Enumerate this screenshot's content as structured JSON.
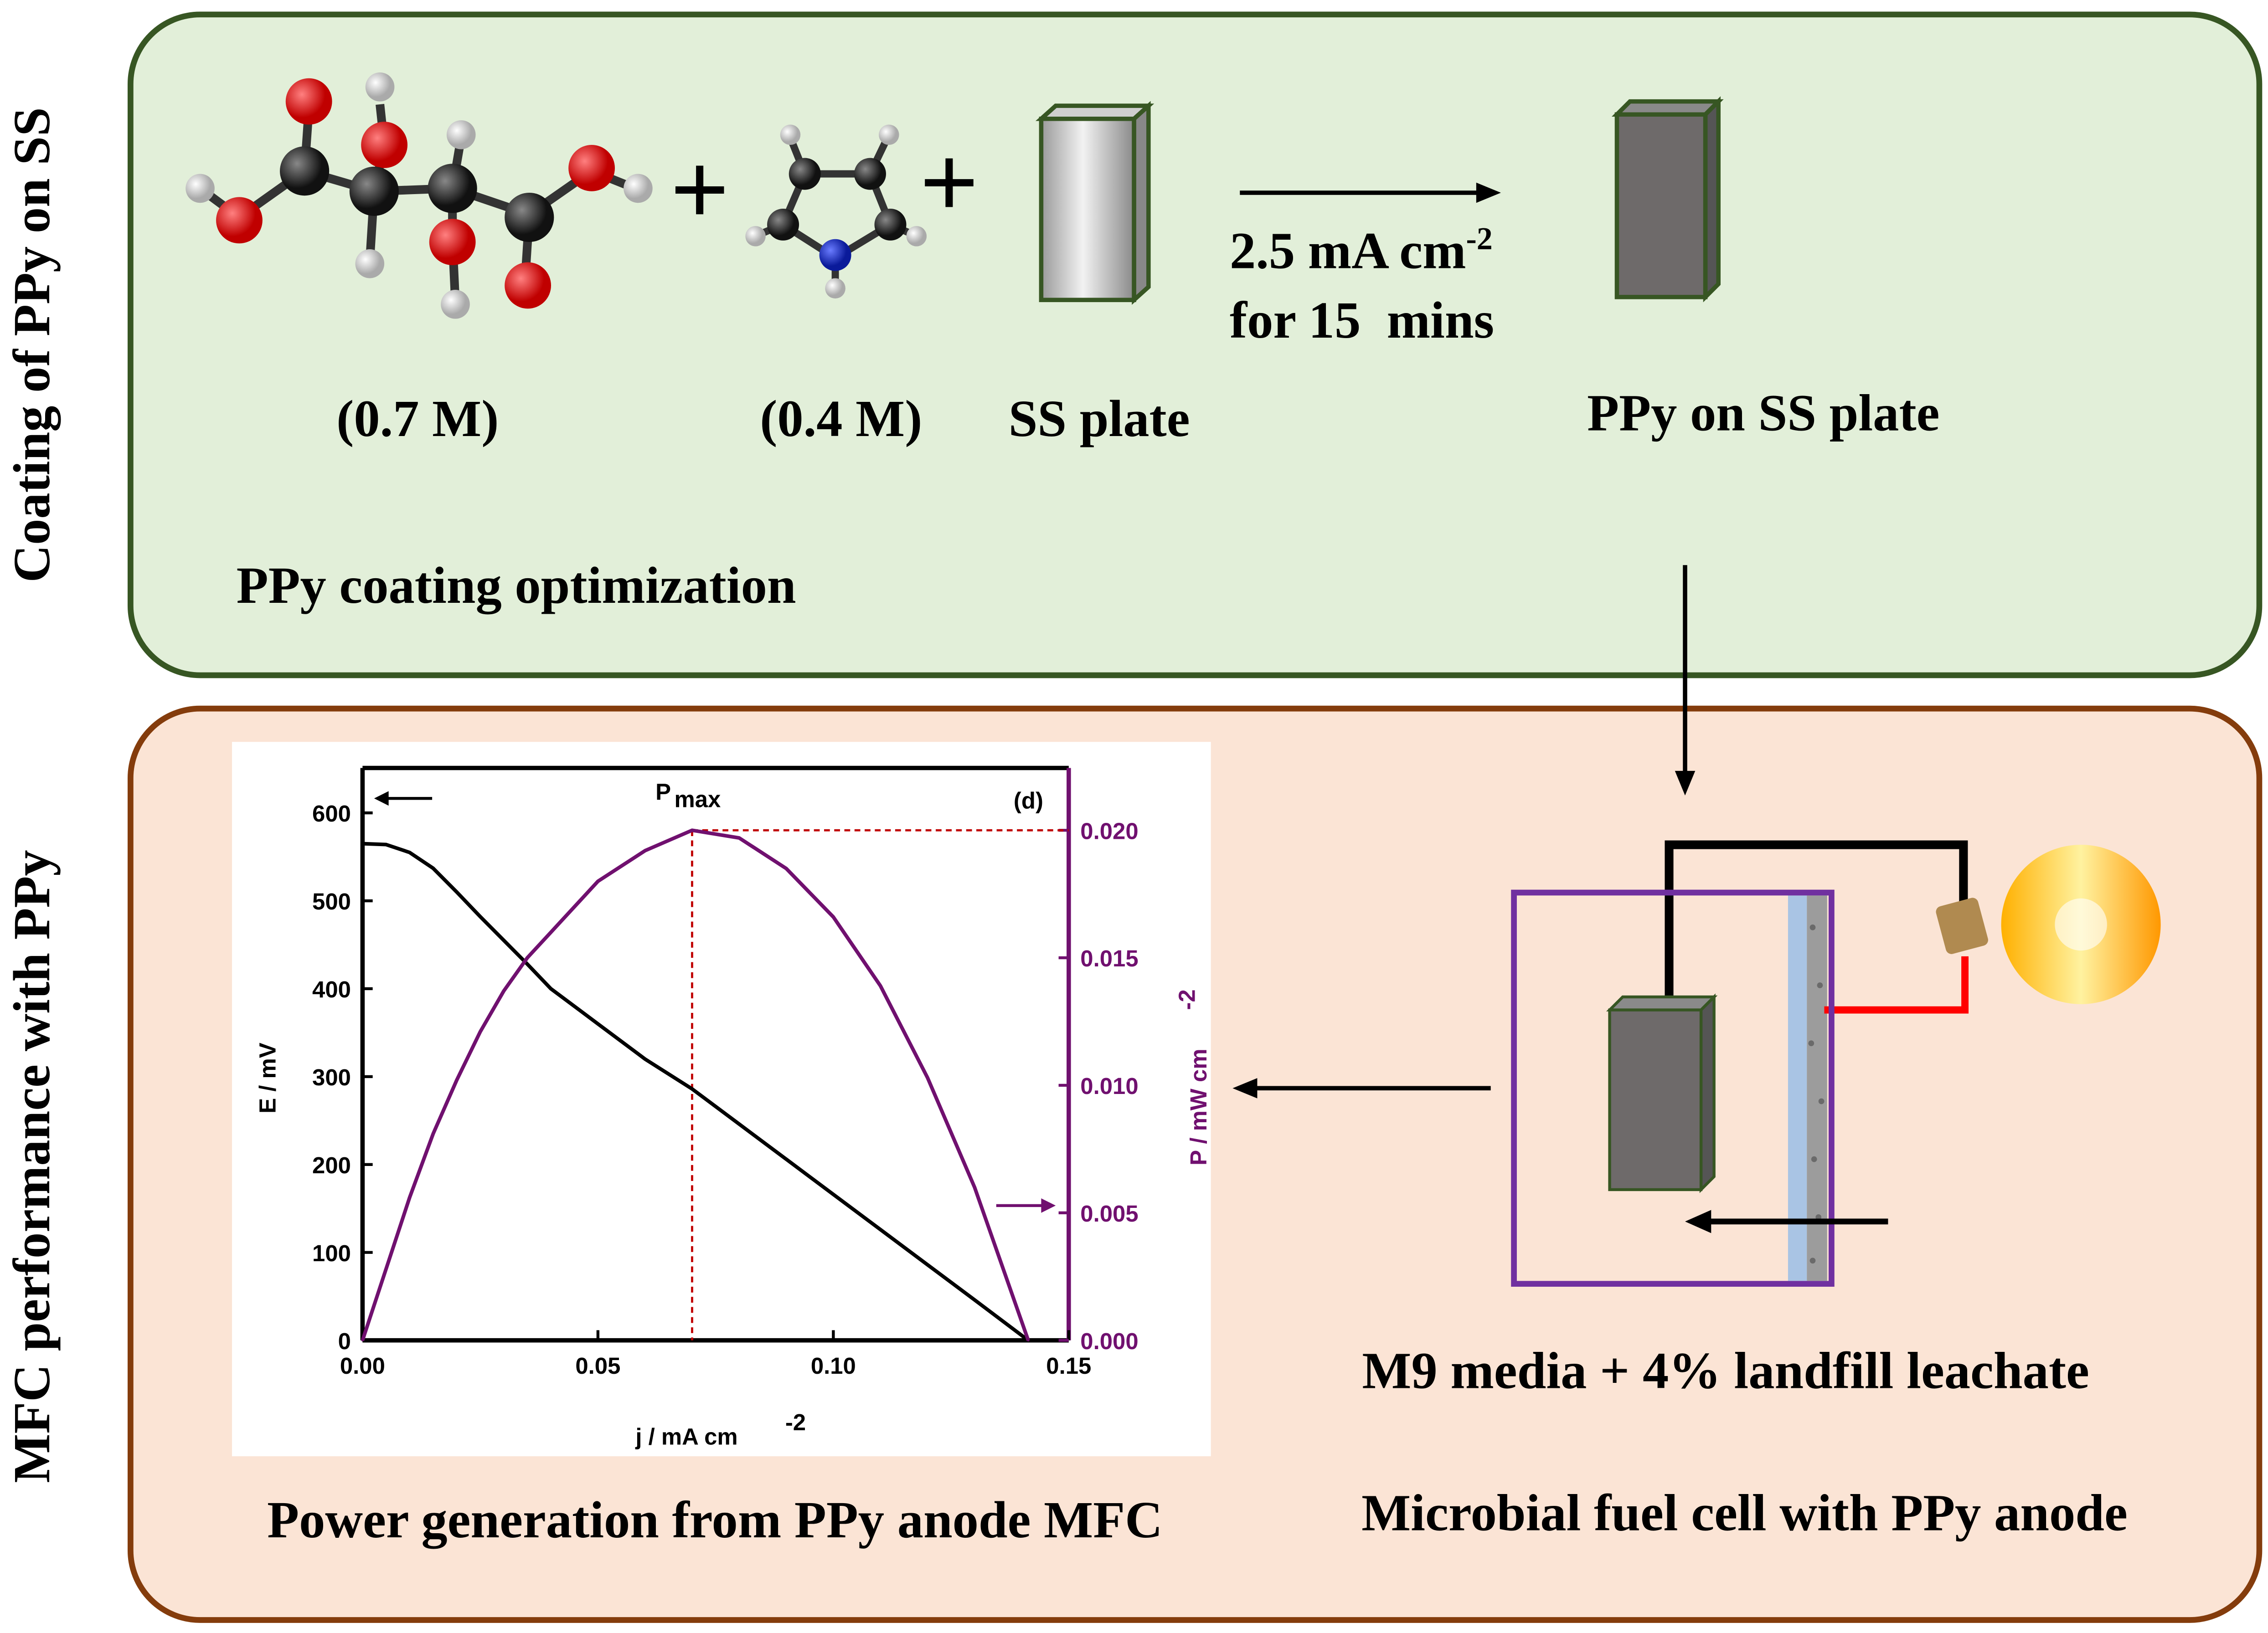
{
  "side_labels": {
    "top": "Coating of PPy on SS",
    "bottom": "MFC performance with PPy"
  },
  "coating": {
    "acid_conc": "(0.7 M)",
    "pyrrole_conc": "(0.4 M)",
    "ss_plate": "SS plate",
    "condition_line1": "2.5 mA cm",
    "condition_sup": "-2",
    "condition_line2": "for 15  mins",
    "product": "PPy on SS plate",
    "caption": "PPy coating optimization",
    "plus": "+"
  },
  "mfc": {
    "media": "M9 media + 4% landfill leachate",
    "caption": "Microbial fuel cell with PPy anode",
    "chart_caption": "Power generation from PPy anode MFC"
  },
  "colors": {
    "top_fill": "#e2efd9",
    "top_border": "#375623",
    "bottom_fill": "#fbe4d5",
    "bottom_border": "#843c0c",
    "power": "#70106f",
    "pmax_line": "#c00000",
    "cell_box": "#7030a0"
  },
  "chart_data": {
    "type": "line",
    "panel_label": "(d)",
    "annotation": "P",
    "annotation_sub": "max",
    "xlabel": "j / mA cm",
    "xlabel_sup": "-2",
    "ylabel": "E / mV",
    "y2label": "P / mW cm",
    "y2label_sup": "-2",
    "xlim": [
      0,
      0.15
    ],
    "ylim": [
      0,
      650
    ],
    "y2lim": [
      0,
      0.0225
    ],
    "xticks": [
      "0.00",
      "0.05",
      "0.10",
      "0.15"
    ],
    "yticks": [
      "0",
      "100",
      "200",
      "300",
      "400",
      "500",
      "600"
    ],
    "y2ticks": [
      "0.000",
      "0.005",
      "0.010",
      "0.015",
      "0.020"
    ],
    "pmax": {
      "j": 0.07,
      "P": 0.02
    },
    "x": [
      0,
      0.005,
      0.01,
      0.015,
      0.02,
      0.025,
      0.03,
      0.035,
      0.04,
      0.05,
      0.06,
      0.07,
      0.08,
      0.09,
      0.1,
      0.11,
      0.12,
      0.13,
      0.1414
    ],
    "series": [
      {
        "name": "E",
        "axis": "left",
        "values": [
          565,
          564,
          555,
          537,
          510,
          482,
          455,
          428,
          400,
          360,
          320,
          286,
          246,
          206,
          166,
          126,
          86,
          46,
          0
        ]
      },
      {
        "name": "P",
        "axis": "right",
        "values": [
          0,
          0.0028,
          0.0056,
          0.0081,
          0.0102,
          0.0121,
          0.0137,
          0.015,
          0.016,
          0.018,
          0.0192,
          0.02,
          0.0197,
          0.0185,
          0.0166,
          0.0139,
          0.0103,
          0.006,
          0
        ]
      }
    ]
  }
}
